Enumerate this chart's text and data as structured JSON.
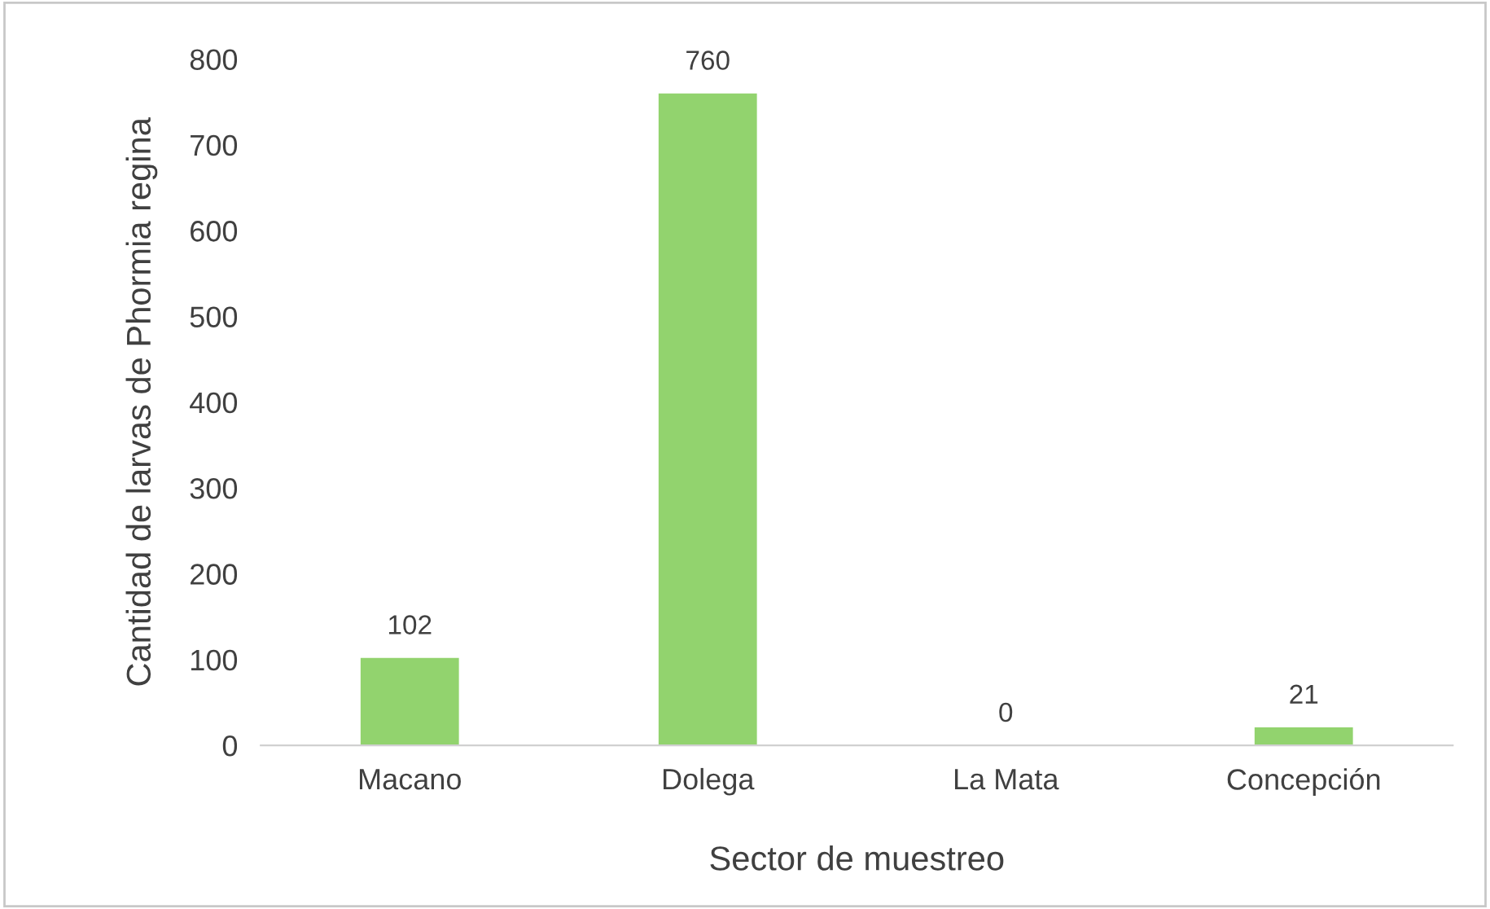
{
  "chart_data": {
    "type": "bar",
    "xlabel": "Sector de muestreo",
    "ylabel": "Cantidad de larvas de Phormia regina",
    "categories": [
      "Macano",
      "Dolega",
      "La Mata",
      "Concepción"
    ],
    "values": [
      102,
      760,
      0,
      21
    ],
    "color": "#92d36e",
    "ylim": [
      0,
      800
    ],
    "yticks": [
      0,
      100,
      200,
      300,
      400,
      500,
      600,
      700,
      800
    ],
    "data_labels": true,
    "grid": false,
    "legend": false
  }
}
